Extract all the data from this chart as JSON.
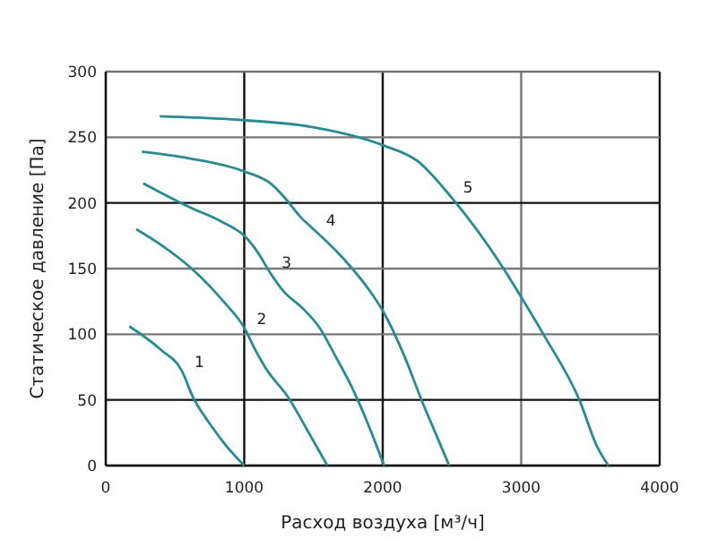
{
  "chart_data": {
    "type": "line",
    "xlabel": "Расход воздуха [м³/ч]",
    "ylabel": "Статическое давление [Па]",
    "xlim": [
      0,
      4000
    ],
    "xticks": [
      0,
      1000,
      2000,
      3000,
      4000
    ],
    "ylim": [
      0,
      300
    ],
    "yticks": [
      0,
      50,
      100,
      150,
      200,
      250,
      300
    ],
    "grid": true,
    "marker": "none",
    "line_style": "solid",
    "series": [
      {
        "name": "1",
        "color": "#2a8a94",
        "x": [
          170,
          400,
          550,
          630,
          750,
          870,
          1000
        ],
        "values": [
          106,
          88,
          72,
          52,
          32,
          15,
          0
        ]
      },
      {
        "name": "2",
        "color": "#2a8a94",
        "x": [
          220,
          400,
          620,
          850,
          1000,
          1080,
          1150,
          1330,
          1450,
          1600
        ],
        "values": [
          180,
          168,
          150,
          125,
          105,
          88,
          75,
          50,
          28,
          0
        ]
      },
      {
        "name": "3",
        "color": "#2a8a94",
        "x": [
          270,
          600,
          850,
          1000,
          1100,
          1180,
          1290,
          1420,
          1550,
          1650,
          1780,
          1900,
          2010
        ],
        "values": [
          215,
          197,
          185,
          175,
          162,
          148,
          132,
          120,
          104,
          85,
          59,
          30,
          0
        ]
      },
      {
        "name": "4",
        "color": "#2a8a94",
        "x": [
          260,
          600,
          1000,
          1200,
          1300,
          1400,
          1500,
          1650,
          1780,
          1900,
          2000,
          2150,
          2280,
          2380,
          2480
        ],
        "values": [
          239,
          234,
          224,
          214,
          203,
          190,
          180,
          165,
          150,
          134,
          118,
          85,
          50,
          25,
          0
        ]
      },
      {
        "name": "5",
        "color": "#2a8a94",
        "x": [
          390,
          1000,
          1480,
          2000,
          2250,
          2490,
          2860,
          2990,
          3160,
          3420,
          3550,
          3630
        ],
        "values": [
          266,
          263,
          258,
          244,
          232,
          205,
          152,
          130,
          100,
          50,
          14,
          0
        ]
      }
    ]
  }
}
